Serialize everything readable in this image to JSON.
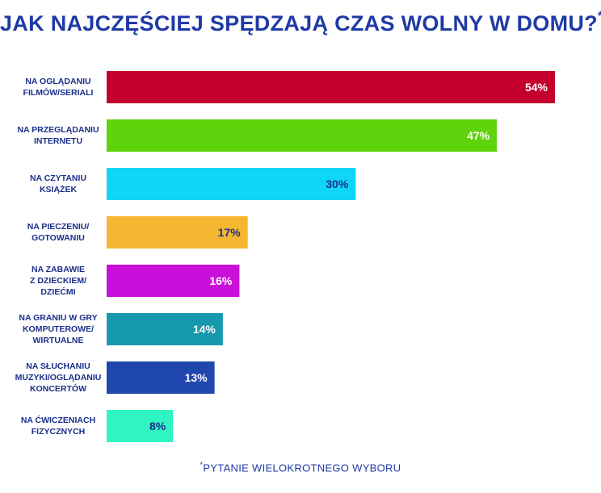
{
  "chart_data": {
    "type": "bar",
    "orientation": "horizontal",
    "title": "JAK NAJCZĘŚCIEJ SPĘDZAJĄ CZAS WOLNY W DOMU?",
    "title_mark": "*",
    "footnote_mark": "*",
    "footnote": "PYTANIE WIELOKROTNEGO WYBORU",
    "xlim": [
      0,
      54
    ],
    "grid": false,
    "legend": "none",
    "categories": [
      [
        "NA OGLĄDANIU",
        "FILMÓW/SERIALI"
      ],
      [
        "NA PRZEGLĄDANIU",
        "INTERNETU"
      ],
      [
        "NA CZYTANIU",
        "KSIĄŻEK"
      ],
      [
        "NA PIECZENIU/",
        "GOTOWANIU"
      ],
      [
        "NA ZABAWIE",
        "Z DZIECKIEM/",
        "DZIEĆMI"
      ],
      [
        "NA GRANIU W GRY",
        "KOMPUTEROWE/",
        "WIRTUALNE"
      ],
      [
        "NA SŁUCHANIU",
        "MUZYKI/OGLĄDANIU",
        "KONCERTÓW"
      ],
      [
        "NA ĆWICZENIACH",
        "FIZYCZNYCH"
      ]
    ],
    "values": [
      54,
      47,
      30,
      17,
      16,
      14,
      13,
      8
    ],
    "value_labels": [
      "54%",
      "47%",
      "30%",
      "17%",
      "16%",
      "14%",
      "13%",
      "8%"
    ],
    "bar_colors": [
      "#c5002f",
      "#5fd30c",
      "#0fd6f4",
      "#f5b731",
      "#c90fd9",
      "#1699ad",
      "#1f47ad",
      "#2ff5c2"
    ],
    "label_colors": [
      "#ffffff",
      "#ffffff",
      "#1a2f8a",
      "#1a2f8a",
      "#ffffff",
      "#ffffff",
      "#ffffff",
      "#1a2f8a"
    ]
  }
}
